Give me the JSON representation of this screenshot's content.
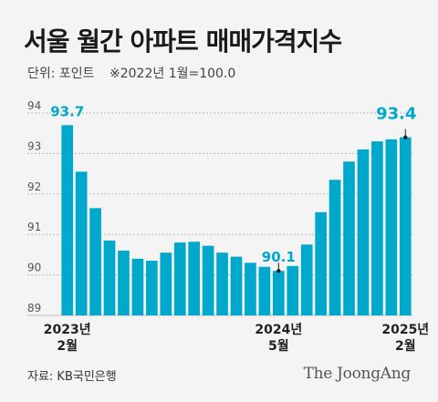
{
  "header": {
    "title": "서울 월간 아파트 매매가격지수",
    "unit": "단위: 포인트",
    "base_note": "※2022년 1월=100.0"
  },
  "chart_data": {
    "type": "bar",
    "categories": [
      "2023-02",
      "2023-03",
      "2023-04",
      "2023-05",
      "2023-06",
      "2023-07",
      "2023-08",
      "2023-09",
      "2023-10",
      "2023-11",
      "2023-12",
      "2024-01",
      "2024-02",
      "2024-03",
      "2024-04",
      "2024-05",
      "2024-06",
      "2024-07",
      "2024-08",
      "2024-09",
      "2024-10",
      "2024-11",
      "2024-12",
      "2025-01",
      "2025-02"
    ],
    "values": [
      93.7,
      92.55,
      91.65,
      90.85,
      90.6,
      90.4,
      90.35,
      90.55,
      90.8,
      90.82,
      90.72,
      90.55,
      90.45,
      90.3,
      90.2,
      90.1,
      90.22,
      90.75,
      91.55,
      92.35,
      92.8,
      93.1,
      93.3,
      93.35,
      93.4
    ],
    "ylim": [
      89,
      94
    ],
    "yticks": [
      89,
      90,
      91,
      92,
      93,
      94
    ],
    "grid": true,
    "color": "#00a8cc",
    "annotations": [
      {
        "index": 0,
        "text": "93.7"
      },
      {
        "index": 15,
        "text": "90.1"
      },
      {
        "index": 24,
        "text": "93.4"
      }
    ],
    "x_labels": [
      {
        "index": 0,
        "year": "2023년",
        "month": "2월"
      },
      {
        "index": 15,
        "year": "2024년",
        "month": "5월"
      },
      {
        "index": 24,
        "year": "2025년",
        "month": "2월"
      }
    ]
  },
  "footer": {
    "source": "자료: KB국민은행",
    "brand": "The JoongAng"
  }
}
